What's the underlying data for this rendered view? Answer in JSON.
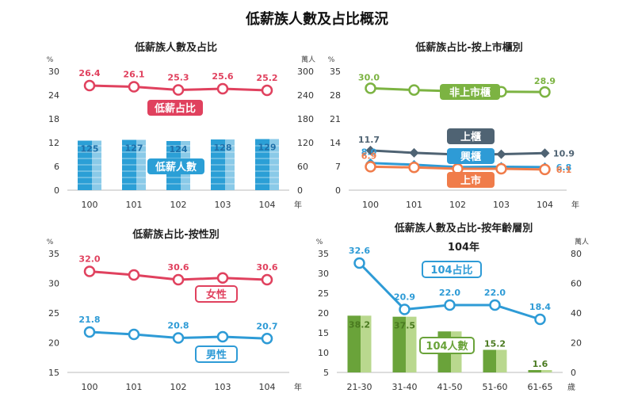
{
  "page": {
    "title": "低薪族人數及占比概況"
  },
  "chart_data": [
    {
      "id": "tl",
      "type": "bar+line",
      "title": "低薪族人數及占比",
      "categories": [
        "100",
        "101",
        "102",
        "103",
        "104"
      ],
      "x_unit": "年",
      "y_left": {
        "unit": "%",
        "ticks": [
          "30",
          "24",
          "18",
          "12",
          "6",
          "0"
        ],
        "ylim": [
          0,
          30
        ]
      },
      "y_right": {
        "unit": "萬人",
        "ticks": [
          "300",
          "240",
          "180",
          "120",
          "60",
          "0"
        ],
        "ylim": [
          0,
          300
        ]
      },
      "series": [
        {
          "name": "低薪人數",
          "kind": "bar",
          "axis": "right",
          "color": "#2b9fd6",
          "values": [
            125,
            127,
            124,
            128,
            129
          ]
        },
        {
          "name": "低薪占比",
          "kind": "line",
          "axis": "left",
          "color": "#e0415e",
          "values": [
            26.4,
            26.1,
            25.3,
            25.6,
            25.2
          ]
        }
      ],
      "value_labels": {
        "bar": [
          "125",
          "127",
          "124",
          "128",
          "129"
        ],
        "line": [
          "26.4",
          "26.1",
          "25.3",
          "25.6",
          "25.2"
        ]
      }
    },
    {
      "id": "tr",
      "type": "line",
      "title": "低薪族占比-按上市櫃別",
      "categories": [
        "100",
        "101",
        "102",
        "103",
        "104"
      ],
      "x_unit": "年",
      "y_left": {
        "unit": "%",
        "ticks": [
          "35",
          "28",
          "21",
          "14",
          "7",
          "0"
        ],
        "ylim": [
          0,
          35
        ]
      },
      "series": [
        {
          "name": "非上市櫃",
          "color": "#7cb342",
          "marker": "open-circle",
          "values": [
            30.0,
            29.5,
            29.1,
            29.0,
            28.9
          ],
          "labels": [
            "30.0",
            "28.9"
          ]
        },
        {
          "name": "上櫃",
          "color": "#4f6373",
          "marker": "diamond",
          "values": [
            11.7,
            11.0,
            10.5,
            10.6,
            10.9
          ],
          "labels": [
            "11.7",
            "10.9"
          ]
        },
        {
          "name": "興櫃",
          "color": "#2e9bd6",
          "marker": "diamond",
          "values": [
            8.0,
            7.5,
            6.8,
            6.9,
            6.8
          ],
          "labels": [
            "8.0",
            "6.8"
          ]
        },
        {
          "name": "上市",
          "color": "#f07c4a",
          "marker": "open-circle",
          "values": [
            6.9,
            6.7,
            6.3,
            6.3,
            6.1
          ],
          "labels": [
            "6.9",
            "6.1"
          ]
        }
      ]
    },
    {
      "id": "bl",
      "type": "line",
      "title": "低薪族占比-按性別",
      "categories": [
        "100",
        "101",
        "102",
        "103",
        "104"
      ],
      "x_unit": "年",
      "y_left": {
        "unit": "%",
        "ticks": [
          "35",
          "30",
          "25",
          "20",
          "15"
        ],
        "ylim": [
          15,
          35
        ]
      },
      "series": [
        {
          "name": "女性",
          "color": "#e0415e",
          "values": [
            32.0,
            31.4,
            30.6,
            30.9,
            30.6
          ],
          "labels": [
            "32.0",
            "",
            "30.6",
            "",
            "30.6"
          ]
        },
        {
          "name": "男性",
          "color": "#2e9bd6",
          "values": [
            21.8,
            21.4,
            20.8,
            21.0,
            20.7
          ],
          "labels": [
            "21.8",
            "",
            "20.8",
            "",
            "20.7"
          ]
        }
      ]
    },
    {
      "id": "br",
      "type": "bar+line",
      "title": "低薪族人數及占比-按年齡層別",
      "subtitle": "104年",
      "categories": [
        "21-30",
        "31-40",
        "41-50",
        "51-60",
        "61-65"
      ],
      "x_unit": "歲",
      "y_left": {
        "unit": "%",
        "ticks": [
          "35",
          "30",
          "25",
          "20",
          "15",
          "10",
          "5"
        ],
        "ylim": [
          5,
          35
        ]
      },
      "y_right": {
        "unit": "萬人",
        "ticks": [
          "80",
          "60",
          "40",
          "20",
          "0"
        ],
        "ylim": [
          0,
          80
        ]
      },
      "series": [
        {
          "name": "104人數",
          "kind": "bar",
          "axis": "right",
          "color": "#7cb342",
          "values": [
            38.2,
            37.5,
            27.6,
            15.2,
            1.6
          ]
        },
        {
          "name": "104占比",
          "kind": "line",
          "axis": "left",
          "color": "#2e9bd6",
          "values": [
            32.6,
            20.9,
            22.0,
            22.0,
            18.4
          ]
        }
      ],
      "value_labels": {
        "bar": [
          "38.2",
          "37.5",
          "27.6",
          "15.2",
          "1.6"
        ],
        "line": [
          "32.6",
          "20.9",
          "22.0",
          "22.0",
          "18.4"
        ]
      }
    }
  ]
}
